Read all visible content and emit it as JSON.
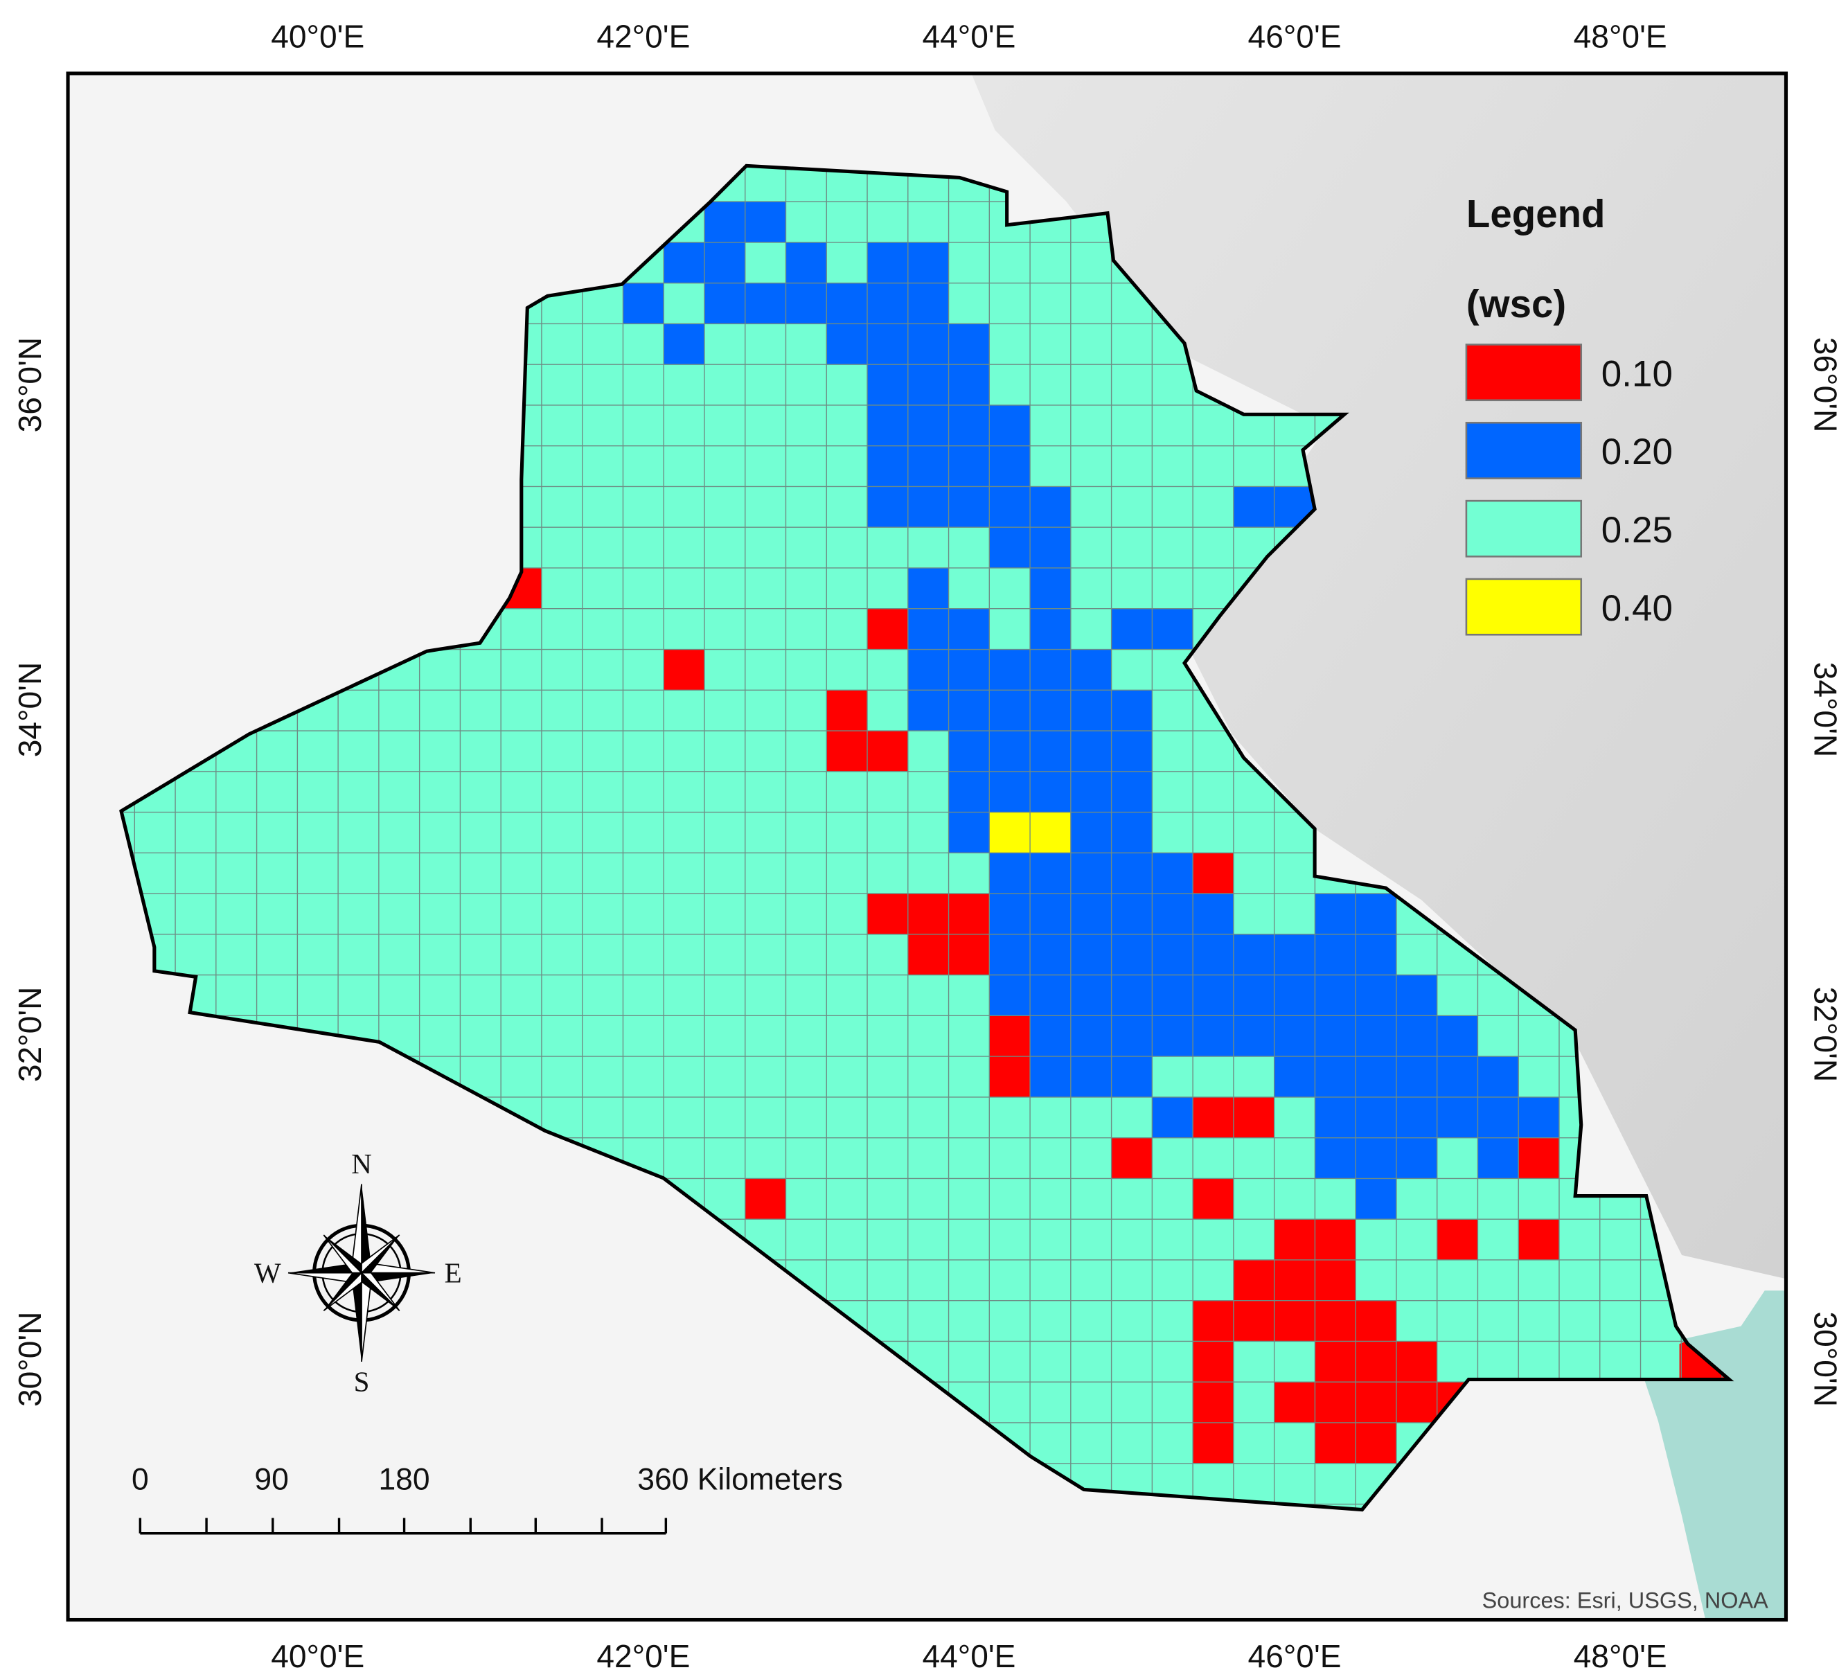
{
  "map": {
    "longitude_labels": [
      "40°0'E",
      "42°0'E",
      "44°0'E",
      "46°0'E",
      "48°0'E"
    ],
    "latitude_labels": [
      "36°0'N",
      "34°0'N",
      "32°0'N",
      "30°0'N"
    ],
    "legend": {
      "title": "Legend",
      "field": "(wsc)",
      "items": [
        {
          "label": "0.10",
          "color": "#ff0000"
        },
        {
          "label": "0.20",
          "color": "#0066ff"
        },
        {
          "label": "0.25",
          "color": "#73ffd3"
        },
        {
          "label": "0.40",
          "color": "#ffff00"
        }
      ]
    },
    "compass": {
      "north": "N",
      "east": "E",
      "south": "S",
      "west": "W"
    },
    "scale_bar": {
      "labels": [
        "0",
        "90",
        "180",
        "360 Kilometers"
      ]
    },
    "source": "Sources: Esri, USGS, NOAA"
  }
}
